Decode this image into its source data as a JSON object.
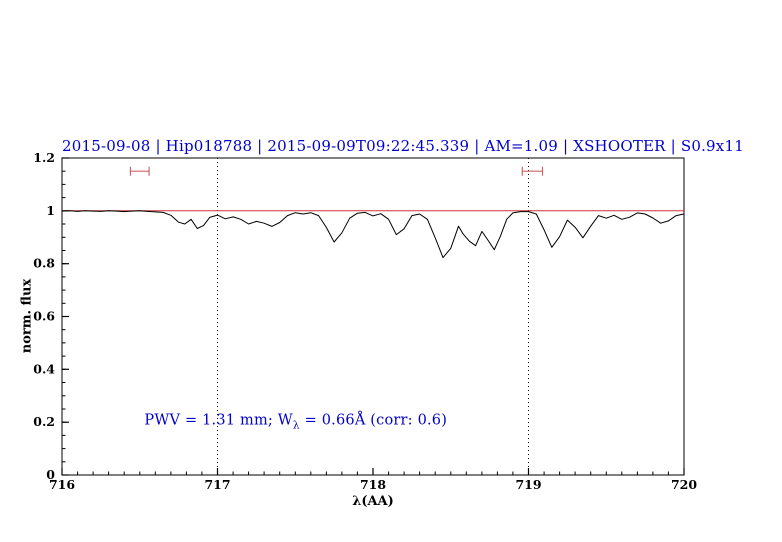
{
  "chart_data": {
    "type": "line",
    "title": "2015-09-08 | Hip018788 | 2015-09-09T09:22:45.339 | AM=1.09 | XSHOOTER | S0.9x11",
    "title_color": "#0000cc",
    "xlabel": "λ(AA)",
    "ylabel": "norm. flux",
    "xlim": [
      716,
      720
    ],
    "ylim": [
      0,
      1.2
    ],
    "xticks": [
      716,
      717,
      718,
      719,
      720
    ],
    "xtick_labels": [
      "716",
      "717",
      "718",
      "719",
      "720"
    ],
    "yticks": [
      0,
      0.2,
      0.4,
      0.6,
      0.8,
      1,
      1.2
    ],
    "ytick_labels": [
      "0",
      "0.2",
      "0.4",
      "0.6",
      "0.8",
      "1",
      "1.2"
    ],
    "minor_x_step": 0.1,
    "minor_y_step": 0.05,
    "grid": false,
    "vline_color": "#000000",
    "vlines": [
      {
        "x": 717,
        "style": "dotted"
      },
      {
        "x": 719,
        "style": "dotted"
      }
    ],
    "series": [
      {
        "name": "continuum",
        "color": "#cc3333",
        "width": 1,
        "points": [
          [
            716.0,
            1.0
          ],
          [
            720.0,
            1.0
          ]
        ]
      },
      {
        "name": "spectrum",
        "color": "#000000",
        "width": 1,
        "points": [
          [
            716.0,
            0.999
          ],
          [
            716.05,
            1.0
          ],
          [
            716.1,
            0.998
          ],
          [
            716.15,
            1.0
          ],
          [
            716.2,
            0.999
          ],
          [
            716.25,
            0.998
          ],
          [
            716.3,
            1.0
          ],
          [
            716.35,
            0.999
          ],
          [
            716.4,
            0.997
          ],
          [
            716.45,
            0.999
          ],
          [
            716.5,
            1.0
          ],
          [
            716.55,
            0.998
          ],
          [
            716.6,
            0.996
          ],
          [
            716.65,
            0.994
          ],
          [
            716.7,
            0.983
          ],
          [
            716.75,
            0.957
          ],
          [
            716.79,
            0.95
          ],
          [
            716.83,
            0.968
          ],
          [
            716.87,
            0.933
          ],
          [
            716.91,
            0.944
          ],
          [
            716.95,
            0.975
          ],
          [
            717.0,
            0.984
          ],
          [
            717.05,
            0.97
          ],
          [
            717.1,
            0.977
          ],
          [
            717.15,
            0.968
          ],
          [
            717.2,
            0.95
          ],
          [
            717.25,
            0.96
          ],
          [
            717.3,
            0.953
          ],
          [
            717.35,
            0.941
          ],
          [
            717.4,
            0.956
          ],
          [
            717.45,
            0.982
          ],
          [
            717.5,
            0.993
          ],
          [
            717.55,
            0.988
          ],
          [
            717.6,
            0.993
          ],
          [
            717.65,
            0.982
          ],
          [
            717.7,
            0.937
          ],
          [
            717.75,
            0.882
          ],
          [
            717.8,
            0.917
          ],
          [
            717.85,
            0.972
          ],
          [
            717.9,
            0.991
          ],
          [
            717.95,
            0.994
          ],
          [
            718.0,
            0.981
          ],
          [
            718.05,
            0.989
          ],
          [
            718.1,
            0.968
          ],
          [
            718.15,
            0.91
          ],
          [
            718.2,
            0.932
          ],
          [
            718.25,
            0.982
          ],
          [
            718.3,
            0.988
          ],
          [
            718.35,
            0.968
          ],
          [
            718.4,
            0.898
          ],
          [
            718.45,
            0.823
          ],
          [
            718.5,
            0.858
          ],
          [
            718.55,
            0.942
          ],
          [
            718.58,
            0.912
          ],
          [
            718.62,
            0.885
          ],
          [
            718.66,
            0.868
          ],
          [
            718.7,
            0.922
          ],
          [
            718.74,
            0.888
          ],
          [
            718.78,
            0.853
          ],
          [
            718.82,
            0.905
          ],
          [
            718.86,
            0.968
          ],
          [
            718.9,
            0.992
          ],
          [
            718.95,
            0.997
          ],
          [
            719.0,
            0.997
          ],
          [
            719.05,
            0.988
          ],
          [
            719.1,
            0.928
          ],
          [
            719.15,
            0.862
          ],
          [
            719.2,
            0.902
          ],
          [
            719.25,
            0.965
          ],
          [
            719.3,
            0.938
          ],
          [
            719.35,
            0.898
          ],
          [
            719.4,
            0.942
          ],
          [
            719.45,
            0.982
          ],
          [
            719.5,
            0.972
          ],
          [
            719.55,
            0.983
          ],
          [
            719.6,
            0.968
          ],
          [
            719.65,
            0.976
          ],
          [
            719.7,
            0.992
          ],
          [
            719.75,
            0.988
          ],
          [
            719.8,
            0.973
          ],
          [
            719.85,
            0.953
          ],
          [
            719.9,
            0.962
          ],
          [
            719.95,
            0.982
          ],
          [
            720.0,
            0.988
          ]
        ]
      }
    ],
    "range_markers": [
      {
        "x1": 716.44,
        "x2": 716.56,
        "y": 1.15,
        "color": "#cc6666"
      },
      {
        "x1": 718.96,
        "x2": 719.09,
        "y": 1.15,
        "color": "#cc6666"
      }
    ],
    "annotation": {
      "prefix": "PWV = 1.31 mm; W",
      "sub": "λ",
      "suffix": " = 0.66Å (corr: 0.6)",
      "color": "#0000cc",
      "x": 716.53,
      "y": 0.2
    }
  }
}
